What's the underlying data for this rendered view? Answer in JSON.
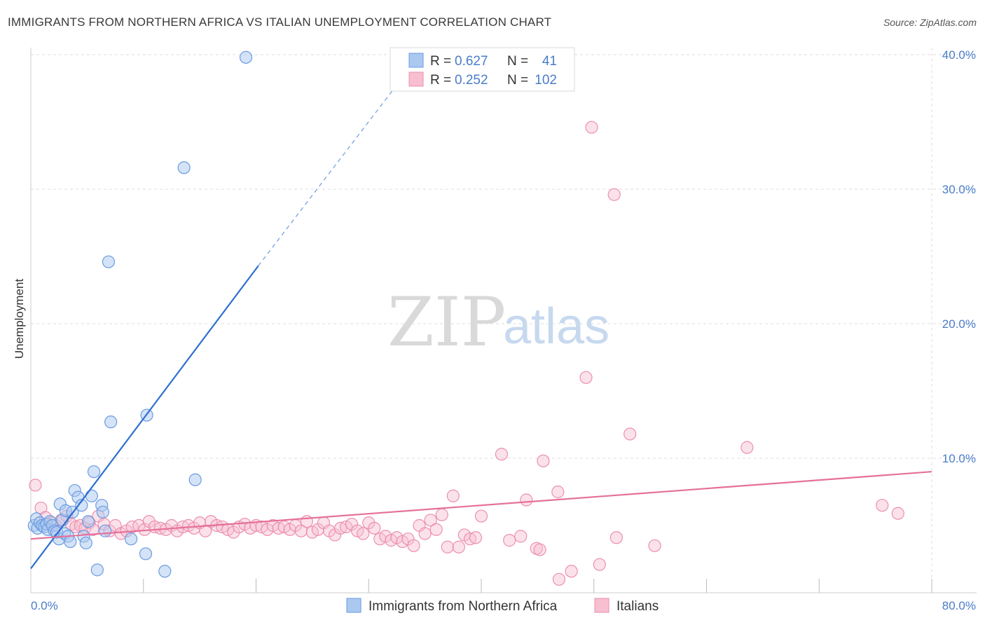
{
  "header": {
    "title": "IMMIGRANTS FROM NORTHERN AFRICA VS ITALIAN UNEMPLOYMENT CORRELATION CHART",
    "source": "Source: ZipAtlas.com"
  },
  "watermark": {
    "zip": "ZIP",
    "atlas": "atlas"
  },
  "colors": {
    "blue_fill": "#aac8f0",
    "blue_stroke": "#6b9be0",
    "blue_line": "#2f6fd0",
    "pink_fill": "#f7bfd0",
    "pink_stroke": "#ec8fae",
    "pink_line": "#e5709a",
    "grid": "#dddddd",
    "tick_label": "#4a7cc9"
  },
  "legend": {
    "rows": [
      {
        "series": "blue",
        "r_label": "R =",
        "r_value": "0.627",
        "n_label": "N =",
        "n_value": "41"
      },
      {
        "series": "pink",
        "r_label": "R =",
        "r_value": "0.252",
        "n_label": "N =",
        "n_value": "102"
      }
    ]
  },
  "chart_data": {
    "type": "scatter",
    "title": "IMMIGRANTS FROM NORTHERN AFRICA VS ITALIAN UNEMPLOYMENT CORRELATION CHART",
    "ylabel": "Unemployment",
    "xlabel": "",
    "xlim": [
      0,
      80
    ],
    "ylim": [
      0,
      40
    ],
    "x_tick_labels": [
      {
        "value": 0,
        "label": "0.0%"
      },
      {
        "value": 80,
        "label": "80.0%"
      }
    ],
    "y_tick_labels": [
      {
        "value": 10,
        "label": "10.0%"
      },
      {
        "value": 20,
        "label": "20.0%"
      },
      {
        "value": 30,
        "label": "30.0%"
      },
      {
        "value": 40,
        "label": "40.0%"
      }
    ],
    "grid": true,
    "legend_position": "top-center",
    "series": [
      {
        "name": "Immigrants from Northern Africa",
        "color": "#6b9be0",
        "trend": {
          "x0": 0,
          "y0": 1.8,
          "x1": 20.2,
          "y1": 24.3,
          "dashed_to_x": 33,
          "dashed_to_y": 38.3
        },
        "points": [
          [
            0.3,
            5.0
          ],
          [
            0.5,
            5.5
          ],
          [
            0.6,
            4.8
          ],
          [
            0.8,
            5.2
          ],
          [
            1.0,
            5.0
          ],
          [
            1.2,
            4.9
          ],
          [
            1.4,
            5.1
          ],
          [
            1.5,
            4.7
          ],
          [
            1.7,
            5.3
          ],
          [
            1.9,
            5.0
          ],
          [
            2.1,
            4.6
          ],
          [
            2.3,
            4.5
          ],
          [
            2.5,
            4.0
          ],
          [
            2.6,
            6.6
          ],
          [
            2.8,
            5.4
          ],
          [
            3.0,
            4.4
          ],
          [
            3.1,
            6.1
          ],
          [
            3.3,
            4.2
          ],
          [
            3.5,
            3.8
          ],
          [
            3.7,
            6.0
          ],
          [
            3.9,
            7.6
          ],
          [
            4.2,
            7.1
          ],
          [
            4.5,
            6.5
          ],
          [
            4.7,
            4.2
          ],
          [
            4.9,
            3.7
          ],
          [
            5.1,
            5.3
          ],
          [
            5.4,
            7.2
          ],
          [
            5.6,
            9.0
          ],
          [
            5.9,
            1.7
          ],
          [
            6.3,
            6.5
          ],
          [
            6.4,
            6.0
          ],
          [
            6.6,
            4.6
          ],
          [
            6.9,
            24.6
          ],
          [
            7.1,
            12.7
          ],
          [
            8.9,
            4.0
          ],
          [
            10.2,
            2.9
          ],
          [
            10.3,
            13.2
          ],
          [
            11.9,
            1.6
          ],
          [
            13.6,
            31.6
          ],
          [
            14.6,
            8.4
          ],
          [
            19.1,
            39.8
          ]
        ]
      },
      {
        "name": "Italians",
        "color": "#ec8fae",
        "trend": {
          "x0": 0,
          "y0": 4.0,
          "x1": 80,
          "y1": 9.0
        },
        "points": [
          [
            0.4,
            8.0
          ],
          [
            0.9,
            6.3
          ],
          [
            1.3,
            5.6
          ],
          [
            1.8,
            5.2
          ],
          [
            2.2,
            5.0
          ],
          [
            2.7,
            5.4
          ],
          [
            3.2,
            5.7
          ],
          [
            3.6,
            5.1
          ],
          [
            4.0,
            4.9
          ],
          [
            4.4,
            5.0
          ],
          [
            4.8,
            4.8
          ],
          [
            5.2,
            5.2
          ],
          [
            5.5,
            4.7
          ],
          [
            6.0,
            5.7
          ],
          [
            6.5,
            5.1
          ],
          [
            7.0,
            4.6
          ],
          [
            7.5,
            5.0
          ],
          [
            8.0,
            4.4
          ],
          [
            8.5,
            4.6
          ],
          [
            9.0,
            4.9
          ],
          [
            9.6,
            5.0
          ],
          [
            10.1,
            4.7
          ],
          [
            10.5,
            5.3
          ],
          [
            11.0,
            4.9
          ],
          [
            11.5,
            4.8
          ],
          [
            12.0,
            4.7
          ],
          [
            12.5,
            5.0
          ],
          [
            13.0,
            4.6
          ],
          [
            13.5,
            4.9
          ],
          [
            14.0,
            5.0
          ],
          [
            14.5,
            4.8
          ],
          [
            15.0,
            5.2
          ],
          [
            15.5,
            4.6
          ],
          [
            16.0,
            5.3
          ],
          [
            16.5,
            5.0
          ],
          [
            17.0,
            4.9
          ],
          [
            17.5,
            4.7
          ],
          [
            18.0,
            4.5
          ],
          [
            18.5,
            4.9
          ],
          [
            19.0,
            5.1
          ],
          [
            19.5,
            4.8
          ],
          [
            20.0,
            5.0
          ],
          [
            20.5,
            4.9
          ],
          [
            21.0,
            4.7
          ],
          [
            21.5,
            5.0
          ],
          [
            22.0,
            4.8
          ],
          [
            22.5,
            4.9
          ],
          [
            23.0,
            4.7
          ],
          [
            23.5,
            5.0
          ],
          [
            24.0,
            4.6
          ],
          [
            24.5,
            5.3
          ],
          [
            25.0,
            4.5
          ],
          [
            25.5,
            4.7
          ],
          [
            26.0,
            5.2
          ],
          [
            26.5,
            4.6
          ],
          [
            27.0,
            4.3
          ],
          [
            27.5,
            4.8
          ],
          [
            28.0,
            4.9
          ],
          [
            28.5,
            5.1
          ],
          [
            29.0,
            4.6
          ],
          [
            29.5,
            4.4
          ],
          [
            30.0,
            5.2
          ],
          [
            30.5,
            4.8
          ],
          [
            31.0,
            4.0
          ],
          [
            31.5,
            4.2
          ],
          [
            32.0,
            3.9
          ],
          [
            32.5,
            4.1
          ],
          [
            33.0,
            3.8
          ],
          [
            33.5,
            4.0
          ],
          [
            34.0,
            3.5
          ],
          [
            34.5,
            5.0
          ],
          [
            35.0,
            4.4
          ],
          [
            35.5,
            5.4
          ],
          [
            36.0,
            4.7
          ],
          [
            36.5,
            5.8
          ],
          [
            37.0,
            3.4
          ],
          [
            37.5,
            7.2
          ],
          [
            38.0,
            3.4
          ],
          [
            38.5,
            4.3
          ],
          [
            39.0,
            4.0
          ],
          [
            39.5,
            4.1
          ],
          [
            40.0,
            5.7
          ],
          [
            41.8,
            10.3
          ],
          [
            42.5,
            3.9
          ],
          [
            43.5,
            4.2
          ],
          [
            44.0,
            6.9
          ],
          [
            44.9,
            3.3
          ],
          [
            45.2,
            3.2
          ],
          [
            45.5,
            9.8
          ],
          [
            46.8,
            7.5
          ],
          [
            46.9,
            1.0
          ],
          [
            48.0,
            1.6
          ],
          [
            49.3,
            16.0
          ],
          [
            49.8,
            34.6
          ],
          [
            50.5,
            2.1
          ],
          [
            51.8,
            29.6
          ],
          [
            52.0,
            4.1
          ],
          [
            53.2,
            11.8
          ],
          [
            55.4,
            3.5
          ],
          [
            63.6,
            10.8
          ],
          [
            75.6,
            6.5
          ],
          [
            77.0,
            5.9
          ]
        ]
      }
    ]
  },
  "bottom_legend": {
    "items": [
      {
        "label": "Immigrants from Northern Africa",
        "series": "blue"
      },
      {
        "label": "Italians",
        "series": "pink"
      }
    ]
  }
}
